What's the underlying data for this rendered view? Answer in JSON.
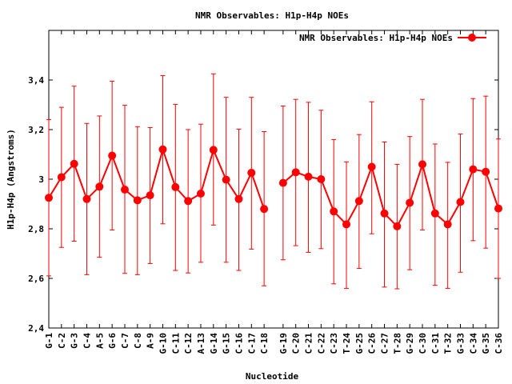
{
  "chart_data": {
    "type": "line",
    "title": "NMR Observables: H1p-H4p NOEs",
    "xlabel": "Nucleotide",
    "ylabel": "H1p-H4p (Angstroms)",
    "ylim": [
      2.4,
      3.6
    ],
    "yticks": [
      2.4,
      2.6,
      2.8,
      3,
      3.2,
      3.4
    ],
    "ytick_labels": [
      "2,4",
      "2,6",
      "2,8",
      "3",
      "3,2",
      "3,4"
    ],
    "legend": {
      "label": "NMR Observables: H1p-H4p NOEs",
      "placement": "top-right"
    },
    "color": "#ff0000",
    "categories": [
      "G-1",
      "C-2",
      "G-3",
      "C-4",
      "A-5",
      "G-6",
      "C-7",
      "C-8",
      "A-9",
      "G-10",
      "C-11",
      "C-12",
      "A-13",
      "G-14",
      "G-15",
      "C-16",
      "C-17",
      "C-18",
      "G-19",
      "C-20",
      "C-21",
      "C-22",
      "C-23",
      "T-24",
      "G-25",
      "C-26",
      "C-27",
      "T-28",
      "G-29",
      "C-30",
      "C-31",
      "T-32",
      "G-33",
      "C-34",
      "G-35",
      "C-36"
    ],
    "x": [
      1,
      2,
      3,
      4,
      5,
      6,
      7,
      8,
      9,
      10,
      11,
      12,
      13,
      14,
      15,
      16,
      17,
      18,
      19.5,
      20.5,
      21.5,
      22.5,
      23.5,
      24.5,
      25.5,
      26.5,
      27.5,
      28.5,
      29.5,
      30.5,
      31.5,
      32.5,
      33.5,
      34.5,
      35.5,
      36.5
    ],
    "xlim": [
      1,
      36.5
    ],
    "series": [
      {
        "name": "NMR Observables: H1p-H4p NOEs",
        "segments": [
          [
            0,
            17
          ],
          [
            18,
            35
          ]
        ],
        "values": [
          2.925,
          3.008,
          3.062,
          2.92,
          2.97,
          3.095,
          2.958,
          2.915,
          2.935,
          3.12,
          2.968,
          2.912,
          2.942,
          3.118,
          2.998,
          2.92,
          3.026,
          2.88,
          2.985,
          3.028,
          3.01,
          3.0,
          2.87,
          2.818,
          2.912,
          3.05,
          2.862,
          2.81,
          2.905,
          3.06,
          2.862,
          2.818,
          2.908,
          3.04,
          3.03,
          2.882
        ],
        "err_low": [
          2.61,
          2.725,
          2.75,
          2.615,
          2.685,
          2.795,
          2.62,
          2.615,
          2.66,
          2.82,
          2.632,
          2.622,
          2.665,
          2.815,
          2.665,
          2.632,
          2.718,
          2.57,
          2.675,
          2.732,
          2.705,
          2.72,
          2.578,
          2.56,
          2.64,
          2.78,
          2.565,
          2.558,
          2.635,
          2.795,
          2.572,
          2.56,
          2.625,
          2.752,
          2.722,
          2.6
        ],
        "err_high": [
          3.24,
          3.29,
          3.375,
          3.225,
          3.255,
          3.395,
          3.298,
          3.212,
          3.208,
          3.418,
          3.302,
          3.2,
          3.222,
          3.425,
          3.33,
          3.202,
          3.33,
          3.192,
          3.295,
          3.322,
          3.31,
          3.278,
          3.16,
          3.07,
          3.18,
          3.312,
          3.15,
          3.06,
          3.172,
          3.322,
          3.142,
          3.068,
          3.182,
          3.325,
          3.335,
          3.162
        ]
      }
    ]
  }
}
